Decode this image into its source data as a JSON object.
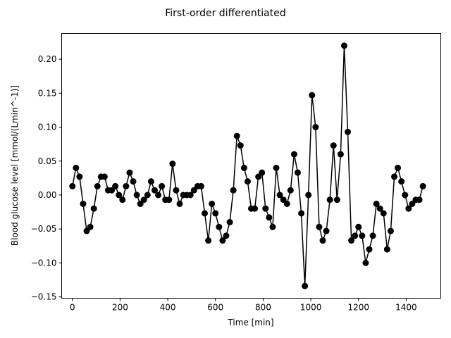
{
  "chart_data": {
    "type": "line",
    "title": "First-order differentiated",
    "xlabel": "Time [min]",
    "ylabel": "Blood glucose level [mmol/(Lmin^-1)]",
    "xlim": [
      -45,
      1545
    ],
    "ylim": [
      -0.152,
      0.238
    ],
    "xticks": [
      0,
      200,
      400,
      600,
      800,
      1000,
      1200,
      1400
    ],
    "yticks": [
      -0.15,
      -0.1,
      -0.05,
      0.0,
      0.05,
      0.1,
      0.15,
      0.2
    ],
    "ytick_labels": [
      "−0.15",
      "−0.10",
      "−0.05",
      "0.00",
      "0.05",
      "0.10",
      "0.15",
      "0.20"
    ],
    "grid": false,
    "color": "#000000",
    "series": [
      {
        "x": [
          0,
          15,
          30,
          45,
          60,
          75,
          90,
          105,
          120,
          135,
          150,
          165,
          180,
          195,
          210,
          225,
          240,
          255,
          270,
          285,
          300,
          315,
          330,
          345,
          360,
          375,
          390,
          405,
          420,
          435,
          450,
          465,
          480,
          495,
          510,
          525,
          540,
          555,
          570,
          585,
          600,
          615,
          630,
          645,
          660,
          675,
          690,
          705,
          720,
          735,
          750,
          765,
          780,
          795,
          810,
          825,
          840,
          855,
          870,
          885,
          900,
          915,
          930,
          945,
          960,
          975,
          990,
          1005,
          1020,
          1035,
          1050,
          1065,
          1080,
          1095,
          1110,
          1125,
          1140,
          1155,
          1170,
          1185,
          1200,
          1215,
          1230,
          1245,
          1260,
          1275,
          1290,
          1305,
          1320,
          1335,
          1350,
          1365,
          1380,
          1395,
          1410,
          1425,
          1440,
          1455,
          1470
        ],
        "y": [
          0.013,
          0.04,
          0.027,
          -0.013,
          -0.053,
          -0.047,
          -0.02,
          0.013,
          0.027,
          0.027,
          0.007,
          0.007,
          0.013,
          0.0,
          -0.007,
          0.013,
          0.033,
          0.02,
          0.0,
          -0.013,
          -0.007,
          0.0,
          0.02,
          0.007,
          0.0,
          0.013,
          -0.007,
          -0.007,
          0.046,
          0.007,
          -0.013,
          0.0,
          0.0,
          0.0,
          0.007,
          0.013,
          0.013,
          -0.027,
          -0.067,
          -0.013,
          -0.027,
          -0.047,
          -0.067,
          -0.06,
          -0.04,
          0.007,
          0.087,
          0.073,
          0.04,
          0.02,
          -0.02,
          -0.02,
          0.027,
          0.033,
          -0.02,
          -0.033,
          -0.047,
          0.04,
          0.0,
          -0.007,
          -0.013,
          0.007,
          0.06,
          0.033,
          -0.027,
          -0.134,
          0.0,
          0.147,
          0.1,
          -0.047,
          -0.067,
          -0.053,
          -0.007,
          0.073,
          -0.007,
          0.06,
          0.22,
          0.093,
          -0.067,
          -0.06,
          -0.047,
          -0.06,
          -0.1,
          -0.08,
          -0.06,
          -0.013,
          -0.02,
          -0.027,
          -0.08,
          -0.053,
          0.027,
          0.04,
          0.02,
          0.0,
          -0.02,
          -0.013,
          -0.007,
          -0.007,
          0.013
        ]
      }
    ]
  }
}
